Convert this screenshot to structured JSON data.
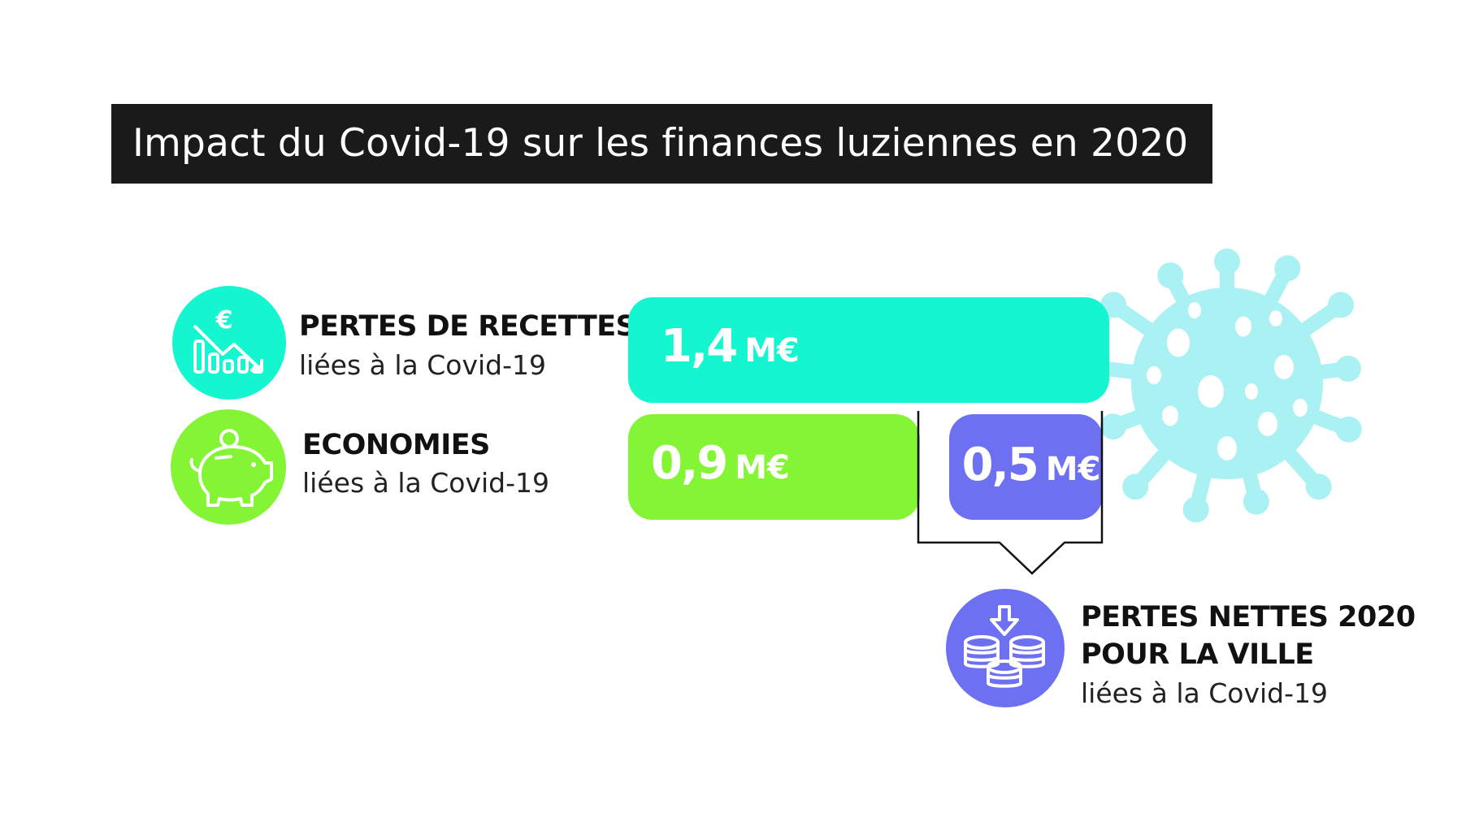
{
  "title": "Impact du Covid-19 sur les finances luziennes en 2020",
  "colors": {
    "title_bg": "#1a1a1a",
    "pertes_recettes": "#14f6cf",
    "economies": "#84f534",
    "pertes_nettes": "#6c70f1",
    "virus": "#aaf1f3"
  },
  "icons": {
    "pertes_recettes": "euro-falling-chart-icon",
    "economies": "piggy-bank-icon",
    "pertes_nettes": "coin-stack-down-arrow-icon",
    "decoration": "virus-icon"
  },
  "labels": {
    "pertes_recettes": {
      "main": "PERTES DE RECETTES",
      "sub": "liées à la Covid-19"
    },
    "economies": {
      "main": "ECONOMIES",
      "sub": "liées à la Covid-19"
    },
    "pertes_nettes": {
      "main_line1": "PERTES NETTES 2020",
      "main_line2": "POUR LA VILLE",
      "sub": "liées à la Covid-19"
    }
  },
  "chart_data": {
    "type": "bar",
    "unit": "M€",
    "series": [
      {
        "name": "PERTES DE RECETTES",
        "value": 1.4,
        "display": "1,4"
      },
      {
        "name": "ECONOMIES",
        "value": 0.9,
        "display": "0,9"
      },
      {
        "name": "PERTES NETTES 2020 POUR LA VILLE",
        "value": 0.5,
        "display": "0,5"
      }
    ]
  }
}
